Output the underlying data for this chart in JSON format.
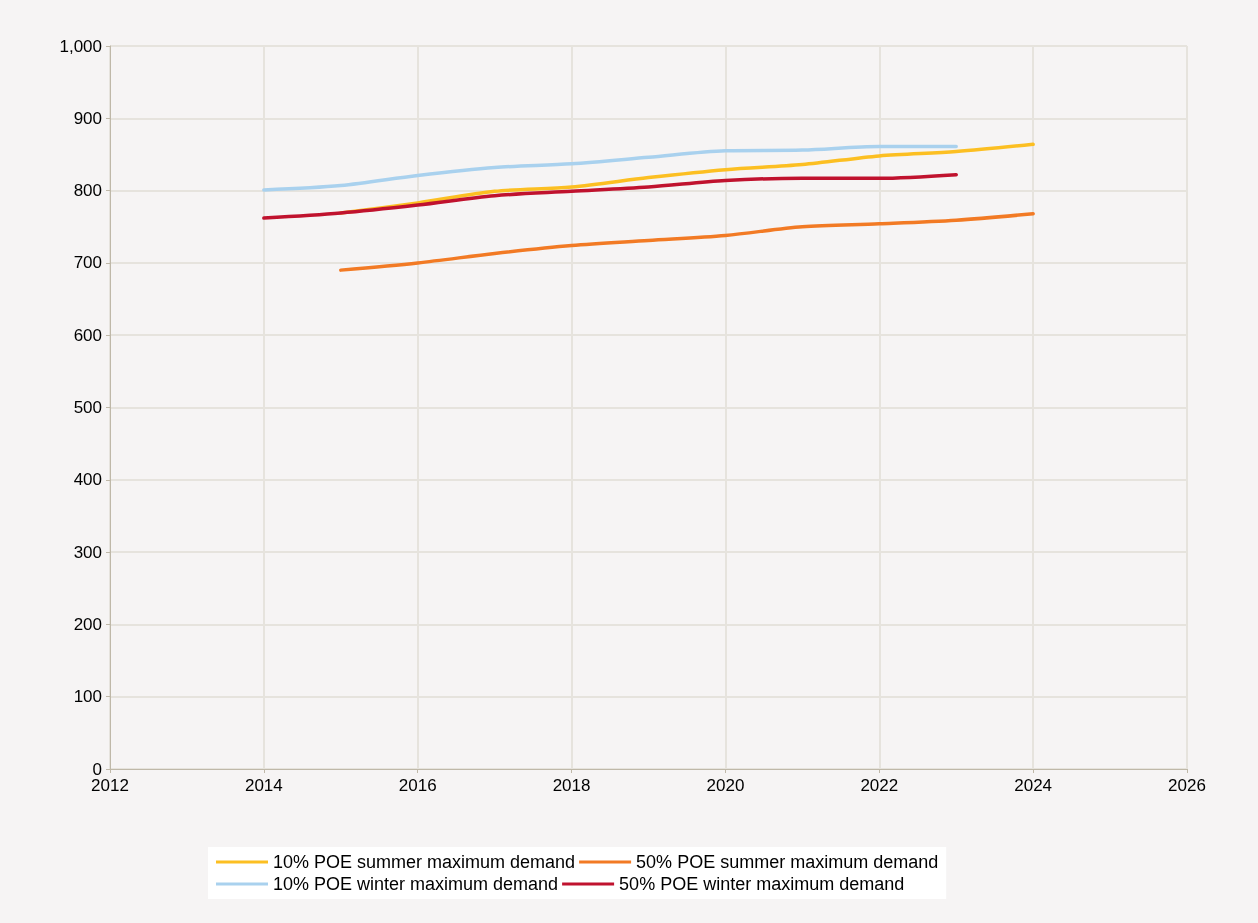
{
  "chart_data": {
    "type": "line",
    "x": [
      2014,
      2015,
      2016,
      2017,
      2018,
      2019,
      2020,
      2021,
      2022,
      2023,
      2024
    ],
    "series": [
      {
        "name": "10% POE summer maximum demand",
        "color": "#fcbf22",
        "values": [
          null,
          769,
          783,
          799,
          805,
          818,
          829,
          836,
          848,
          854,
          864
        ]
      },
      {
        "name": "50% POE summer maximum demand",
        "color": "#f27a24",
        "values": [
          null,
          690,
          700,
          713,
          724,
          731,
          738,
          750,
          754,
          759,
          768
        ]
      },
      {
        "name": "10% POE winter maximum demand",
        "color": "#a9d1ee",
        "values": [
          801,
          807,
          821,
          832,
          837,
          846,
          855,
          856,
          861,
          861,
          null
        ]
      },
      {
        "name": "50% POE winter maximum demand",
        "color": "#c0122e",
        "values": [
          762,
          769,
          780,
          793,
          799,
          805,
          814,
          817,
          817,
          822,
          null
        ]
      }
    ],
    "xlim": [
      2012,
      2026
    ],
    "xticks": [
      2012,
      2014,
      2016,
      2018,
      2020,
      2022,
      2024,
      2026
    ],
    "ylim": [
      0,
      1000
    ],
    "yticks": [
      0,
      100,
      200,
      300,
      400,
      500,
      600,
      700,
      800,
      900,
      {
        "value": 1000,
        "label": "1,000"
      }
    ],
    "grid": true,
    "legend": "bottom",
    "marker": "none",
    "line_style": "solid"
  }
}
